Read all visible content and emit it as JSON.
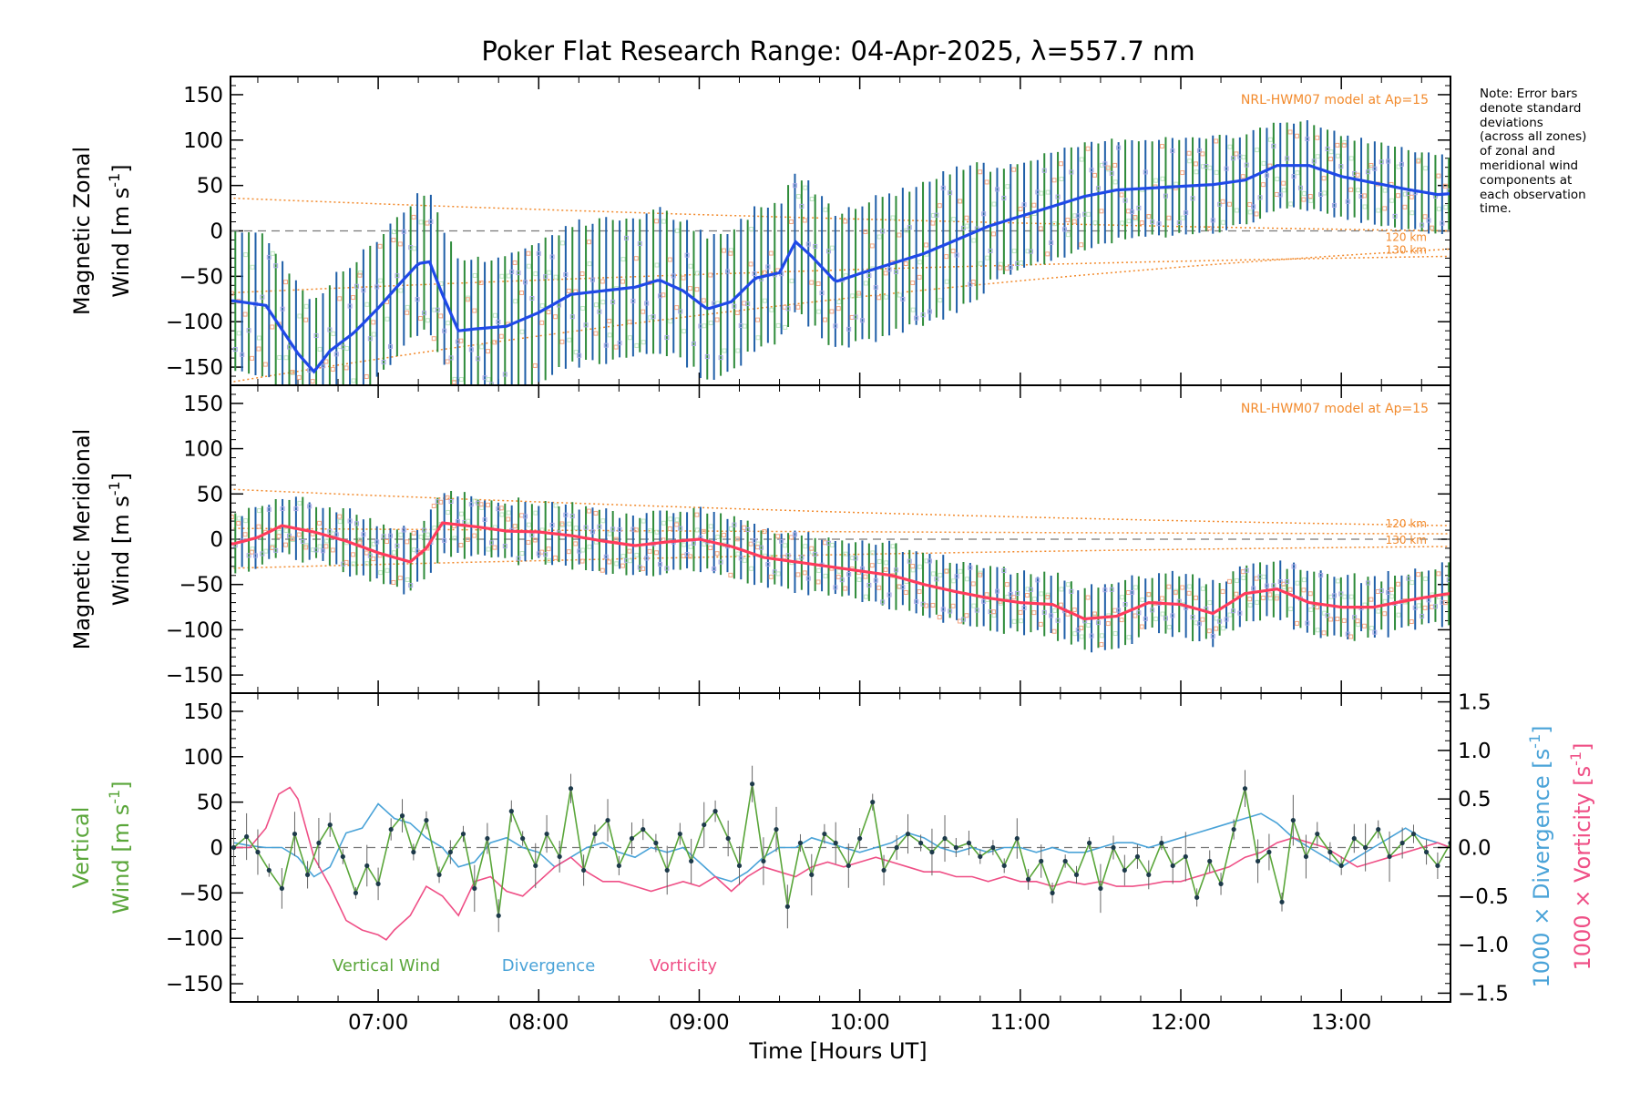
{
  "title": "Poker Flat Research Range: 04-Apr-2025, λ=557.7 nm",
  "note_lines": [
    "Note: Error bars",
    "denote standard",
    "deviations",
    "(across all zones)",
    "of zonal and",
    "meridional wind",
    "components at",
    "each observation",
    "time."
  ],
  "xlabel": "Time [Hours UT]",
  "colors": {
    "zonal": "#1f49e8",
    "meridional": "#ff3b5c",
    "vertical": "#5aa63a",
    "divergence": "#4aa3d8",
    "vorticity": "#ef4f86",
    "errorbar_green": "#2e8b3a",
    "errorbar_blue": "#1f5fa8",
    "model": "#f28a2c",
    "zone_light": "#a9a9e6"
  },
  "chart_data": [
    {
      "type": "line",
      "panel": "zonal",
      "ylabel_line1": "Magnetic Zonal",
      "ylabel_line2": "Wind [m s",
      "ylabel_sup": "-1",
      "ylabel_close": "]",
      "model_label": "NRL-HWM07 model at Ap=15",
      "model_alt_labels": [
        "120 km",
        "130 km"
      ],
      "xlim": [
        6.08,
        13.68
      ],
      "ylim": [
        -170,
        170
      ],
      "yticks": [
        -150,
        -100,
        -50,
        0,
        50,
        100,
        150
      ],
      "x": [
        6.1,
        6.3,
        6.5,
        6.6,
        6.7,
        6.85,
        7.0,
        7.15,
        7.25,
        7.32,
        7.4,
        7.5,
        7.6,
        7.8,
        8.0,
        8.2,
        8.4,
        8.6,
        8.75,
        8.9,
        9.05,
        9.2,
        9.35,
        9.5,
        9.6,
        9.7,
        9.85,
        10.0,
        10.2,
        10.4,
        10.6,
        10.8,
        11.0,
        11.2,
        11.4,
        11.6,
        11.8,
        12.0,
        12.2,
        12.4,
        12.6,
        12.8,
        13.0,
        13.2,
        13.4,
        13.6,
        13.68
      ],
      "y": [
        -77,
        -82,
        -135,
        -155,
        -132,
        -112,
        -85,
        -55,
        -36,
        -34,
        -70,
        -110,
        -108,
        -105,
        -90,
        -70,
        -66,
        -62,
        -54,
        -66,
        -86,
        -78,
        -52,
        -46,
        -12,
        -28,
        -56,
        -47,
        -36,
        -25,
        -10,
        5,
        16,
        27,
        38,
        45,
        47,
        49,
        51,
        56,
        72,
        72,
        60,
        53,
        46,
        40,
        41
      ],
      "model_curves": [
        {
          "x": [
            6.1,
            13.68
          ],
          "y": [
            36,
            0
          ]
        },
        {
          "x": [
            6.1,
            13.68
          ],
          "y": [
            -68,
            -28
          ]
        },
        {
          "x": [
            6.1,
            13.68
          ],
          "y": [
            -166,
            -20
          ]
        }
      ],
      "model_label_values": [
        -6,
        -20
      ]
    },
    {
      "type": "line",
      "panel": "meridional",
      "ylabel_line1": "Magnetic Meridional",
      "ylabel_line2": "Wind [m s",
      "ylabel_sup": "-1",
      "ylabel_close": "]",
      "model_label": "NRL-HWM07 model at Ap=15",
      "model_alt_labels": [
        "120 km",
        "130 km"
      ],
      "xlim": [
        6.08,
        13.68
      ],
      "ylim": [
        -170,
        170
      ],
      "yticks": [
        -150,
        -100,
        -50,
        0,
        50,
        100,
        150
      ],
      "x": [
        6.1,
        6.25,
        6.4,
        6.6,
        6.8,
        7.0,
        7.2,
        7.3,
        7.4,
        7.6,
        7.8,
        8.0,
        8.2,
        8.4,
        8.6,
        8.8,
        9.0,
        9.2,
        9.4,
        9.6,
        9.8,
        10.0,
        10.2,
        10.4,
        10.6,
        10.8,
        11.0,
        11.2,
        11.4,
        11.6,
        11.8,
        12.0,
        12.2,
        12.4,
        12.6,
        12.8,
        13.0,
        13.2,
        13.4,
        13.6,
        13.68
      ],
      "y": [
        -5,
        2,
        15,
        8,
        -2,
        -15,
        -25,
        -10,
        18,
        14,
        9,
        8,
        4,
        -2,
        -7,
        -3,
        0,
        -8,
        -20,
        -25,
        -30,
        -35,
        -40,
        -50,
        -58,
        -65,
        -70,
        -72,
        -88,
        -85,
        -70,
        -72,
        -82,
        -60,
        -55,
        -70,
        -75,
        -75,
        -68,
        -62,
        -60
      ],
      "model_curves": [
        {
          "x": [
            6.1,
            13.68
          ],
          "y": [
            55,
            15
          ]
        },
        {
          "x": [
            6.1,
            13.68
          ],
          "y": [
            12,
            6
          ]
        },
        {
          "x": [
            6.1,
            13.68
          ],
          "y": [
            -32,
            -8
          ]
        }
      ],
      "model_label_values": [
        18,
        0
      ]
    },
    {
      "type": "line",
      "panel": "vertical",
      "ylabel_line1": "Vertical",
      "ylabel_line2": "Wind [m s",
      "ylabel_sup": "-1",
      "ylabel_close": "]",
      "right_ylabel_div": "1000 × Divergence [s",
      "right_ylabel_vor": "1000 × Vorticity [s",
      "right_ylabel_sup": "-1",
      "right_ylabel_close": "]",
      "xlim": [
        6.08,
        13.68
      ],
      "ylim": [
        -170,
        170
      ],
      "yticks": [
        -150,
        -100,
        -50,
        0,
        50,
        100,
        150
      ],
      "y2lim": [
        -1.59,
        1.59
      ],
      "y2ticks": [
        -1.5,
        -1.0,
        -0.5,
        0.0,
        0.5,
        1.0,
        1.5
      ],
      "y2ticklabels": [
        "−1.5",
        "−1.0",
        "−0.5",
        "0.0",
        "0.5",
        "1.0",
        "1.5"
      ],
      "legend": [
        "Vertical Wind",
        "Divergence",
        "Vorticity"
      ],
      "series": [
        {
          "name": "Vertical Wind",
          "x": [
            6.1,
            6.18,
            6.25,
            6.32,
            6.4,
            6.48,
            6.56,
            6.63,
            6.7,
            6.78,
            6.86,
            6.93,
            7.0,
            7.08,
            7.15,
            7.22,
            7.3,
            7.38,
            7.45,
            7.53,
            7.6,
            7.68,
            7.75,
            7.83,
            7.9,
            7.98,
            8.05,
            8.13,
            8.2,
            8.28,
            8.35,
            8.43,
            8.5,
            8.58,
            8.65,
            8.73,
            8.8,
            8.88,
            8.95,
            9.03,
            9.1,
            9.18,
            9.25,
            9.33,
            9.4,
            9.48,
            9.55,
            9.63,
            9.7,
            9.78,
            9.85,
            9.93,
            10.0,
            10.08,
            10.15,
            10.23,
            10.3,
            10.38,
            10.45,
            10.53,
            10.6,
            10.68,
            10.75,
            10.83,
            10.9,
            10.98,
            11.05,
            11.13,
            11.2,
            11.28,
            11.35,
            11.43,
            11.5,
            11.58,
            11.65,
            11.73,
            11.8,
            11.88,
            11.95,
            12.03,
            12.1,
            12.18,
            12.25,
            12.33,
            12.4,
            12.48,
            12.55,
            12.63,
            12.7,
            12.78,
            12.85,
            12.93,
            13.0,
            13.08,
            13.15,
            13.23,
            13.3,
            13.38,
            13.45,
            13.53,
            13.6,
            13.68
          ],
          "y": [
            0,
            12,
            -5,
            -25,
            -45,
            15,
            -30,
            5,
            25,
            -10,
            -50,
            -20,
            -40,
            20,
            35,
            -5,
            30,
            -30,
            -5,
            15,
            -45,
            10,
            -75,
            40,
            10,
            -20,
            15,
            -10,
            65,
            -25,
            15,
            30,
            -20,
            10,
            20,
            5,
            -25,
            15,
            -15,
            25,
            40,
            10,
            -20,
            70,
            -15,
            20,
            -65,
            5,
            -30,
            15,
            5,
            -20,
            10,
            50,
            -25,
            0,
            15,
            5,
            -5,
            10,
            0,
            5,
            -10,
            0,
            -20,
            10,
            -35,
            -15,
            -50,
            -15,
            -30,
            5,
            -45,
            0,
            -25,
            -10,
            -30,
            5,
            -20,
            -10,
            -55,
            -15,
            -40,
            20,
            65,
            -15,
            -5,
            -60,
            30,
            -10,
            15,
            -5,
            -20,
            10,
            0,
            20,
            -10,
            5,
            15,
            -5,
            -20,
            5
          ]
        },
        {
          "name": "Divergence",
          "x": [
            6.1,
            6.2,
            6.3,
            6.4,
            6.5,
            6.6,
            6.7,
            6.8,
            6.9,
            7.0,
            7.1,
            7.2,
            7.3,
            7.4,
            7.5,
            7.6,
            7.7,
            7.8,
            7.9,
            8.0,
            8.1,
            8.2,
            8.3,
            8.4,
            8.5,
            8.6,
            8.7,
            8.8,
            8.9,
            9.0,
            9.1,
            9.2,
            9.3,
            9.4,
            9.5,
            9.6,
            9.7,
            9.8,
            9.9,
            10.0,
            10.1,
            10.2,
            10.3,
            10.4,
            10.5,
            10.6,
            10.7,
            10.8,
            10.9,
            11.0,
            11.1,
            11.2,
            11.3,
            11.4,
            11.5,
            11.6,
            11.7,
            11.8,
            11.9,
            12.0,
            12.1,
            12.2,
            12.3,
            12.4,
            12.5,
            12.6,
            12.7,
            12.8,
            12.9,
            13.0,
            13.1,
            13.2,
            13.3,
            13.4,
            13.5,
            13.6,
            13.68
          ],
          "y": [
            0.05,
            0.02,
            0.0,
            0.0,
            -0.1,
            -0.3,
            -0.2,
            0.15,
            0.2,
            0.45,
            0.3,
            0.25,
            0.1,
            0.0,
            -0.2,
            -0.15,
            0.05,
            0.1,
            0.0,
            -0.05,
            -0.2,
            -0.1,
            0.0,
            0.05,
            -0.05,
            -0.1,
            0.0,
            -0.05,
            0.0,
            -0.15,
            -0.3,
            -0.35,
            -0.25,
            -0.1,
            0.0,
            0.0,
            0.1,
            0.05,
            0.0,
            -0.05,
            0.0,
            0.05,
            0.15,
            0.1,
            0.0,
            -0.05,
            0.0,
            -0.05,
            0.0,
            0.0,
            -0.05,
            0.0,
            -0.05,
            -0.05,
            0.0,
            0.05,
            0.05,
            0.0,
            0.05,
            0.1,
            0.15,
            0.2,
            0.25,
            0.3,
            0.35,
            0.25,
            0.1,
            0.0,
            -0.1,
            -0.2,
            -0.1,
            0.0,
            0.1,
            0.2,
            0.1,
            0.05,
            0.0
          ]
        },
        {
          "name": "Vorticity",
          "x": [
            6.1,
            6.2,
            6.3,
            6.38,
            6.45,
            6.5,
            6.55,
            6.6,
            6.7,
            6.8,
            6.9,
            7.0,
            7.05,
            7.1,
            7.2,
            7.3,
            7.4,
            7.5,
            7.6,
            7.7,
            7.8,
            7.9,
            8.0,
            8.1,
            8.2,
            8.3,
            8.4,
            8.5,
            8.6,
            8.7,
            8.8,
            8.9,
            9.0,
            9.1,
            9.2,
            9.3,
            9.4,
            9.5,
            9.6,
            9.7,
            9.8,
            9.9,
            10.0,
            10.1,
            10.2,
            10.3,
            10.4,
            10.5,
            10.6,
            10.7,
            10.8,
            10.9,
            11.0,
            11.1,
            11.2,
            11.3,
            11.4,
            11.5,
            11.6,
            11.7,
            11.8,
            11.9,
            12.0,
            12.1,
            12.2,
            12.3,
            12.4,
            12.5,
            12.6,
            12.7,
            12.8,
            12.9,
            13.0,
            13.1,
            13.2,
            13.3,
            13.4,
            13.5,
            13.6,
            13.68
          ],
          "y": [
            0.0,
            0.0,
            0.2,
            0.55,
            0.62,
            0.5,
            0.2,
            -0.1,
            -0.4,
            -0.75,
            -0.85,
            -0.9,
            -0.95,
            -0.85,
            -0.7,
            -0.4,
            -0.5,
            -0.7,
            -0.35,
            -0.3,
            -0.45,
            -0.5,
            -0.35,
            -0.2,
            -0.1,
            -0.25,
            -0.35,
            -0.35,
            -0.4,
            -0.45,
            -0.4,
            -0.35,
            -0.4,
            -0.3,
            -0.45,
            -0.3,
            -0.2,
            -0.25,
            -0.3,
            -0.2,
            -0.15,
            -0.2,
            -0.15,
            -0.1,
            -0.15,
            -0.2,
            -0.25,
            -0.25,
            -0.3,
            -0.3,
            -0.35,
            -0.3,
            -0.35,
            -0.35,
            -0.4,
            -0.35,
            -0.38,
            -0.35,
            -0.4,
            -0.4,
            -0.38,
            -0.35,
            -0.35,
            -0.3,
            -0.25,
            -0.2,
            -0.1,
            -0.05,
            0.05,
            0.1,
            0.05,
            0.0,
            -0.1,
            -0.2,
            -0.15,
            -0.1,
            -0.05,
            0.0,
            0.05,
            0.0
          ]
        }
      ]
    }
  ],
  "xticks": [
    7,
    8,
    9,
    10,
    11,
    12,
    13
  ],
  "xticklabels": [
    "07:00",
    "08:00",
    "09:00",
    "10:00",
    "11:00",
    "12:00",
    "13:00"
  ]
}
